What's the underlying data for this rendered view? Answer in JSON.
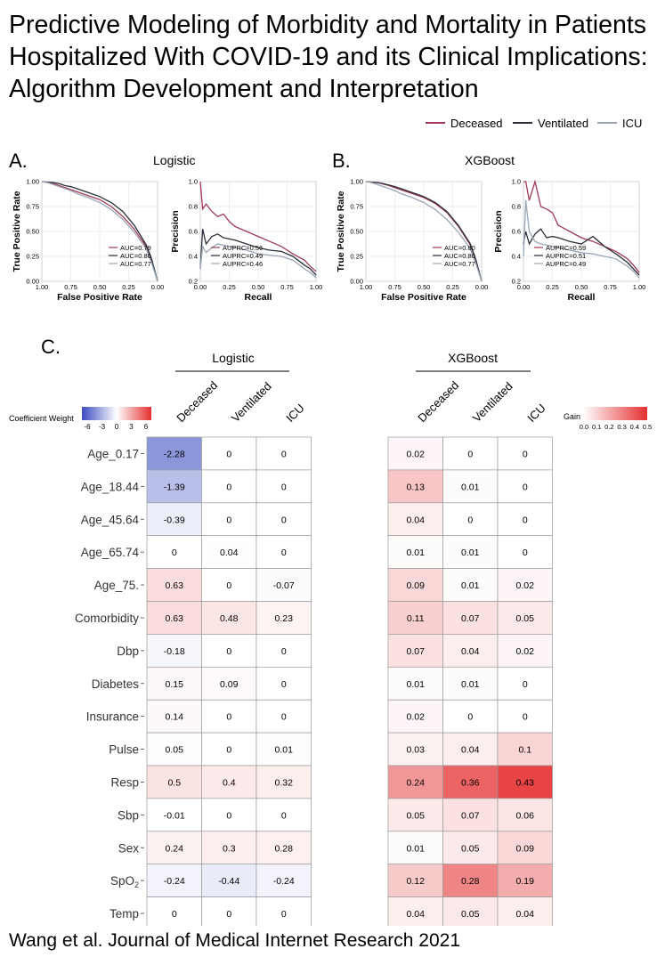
{
  "title": "Predictive Modeling of Morbidity and Mortality in Patients Hospitalized With COVID-19 and its Clinical Implications: Algorithm Development and Interpretation",
  "footer": "Wang et al. Journal of Medical Internet Research 2021",
  "colors": {
    "deceased": "#a23a55",
    "ventilated": "#2b2f3a",
    "icu": "#9aa6b6",
    "neg": "#3b4cc0",
    "pos": "#e53030"
  },
  "legend": {
    "entries": [
      "Deceased",
      "Ventilated",
      "ICU"
    ]
  },
  "panel_a": {
    "letter": "A.",
    "title": "Logistic"
  },
  "panel_b": {
    "letter": "B.",
    "title": "XGBoost"
  },
  "panel_c": {
    "letter": "C.",
    "logistic_title": "Logistic",
    "xgboost_title": "XGBoost",
    "coef_label": "Coefficient Weight",
    "gain_label": "Gain"
  },
  "chart_data": [
    {
      "type": "line",
      "model": "Logistic",
      "curve": "ROC",
      "xlabel": "False Positive Rate",
      "ylabel": "True Positive Rate",
      "xticks": [
        "1.00",
        "0.75",
        "0.50",
        "0.25",
        "0.00"
      ],
      "yticks": [
        "0.00",
        "0.25",
        "0.50",
        "0.75",
        "1.00"
      ],
      "series": [
        {
          "name": "Deceased",
          "auc_label": "AUC=0.79",
          "x": [
            1,
            0.95,
            0.9,
            0.85,
            0.8,
            0.75,
            0.7,
            0.6,
            0.5,
            0.4,
            0.3,
            0.2,
            0.1,
            0.05,
            0
          ],
          "y": [
            1,
            0.99,
            0.98,
            0.96,
            0.94,
            0.92,
            0.9,
            0.86,
            0.82,
            0.75,
            0.65,
            0.52,
            0.35,
            0.2,
            0
          ]
        },
        {
          "name": "Ventilated",
          "auc_label": "AUC=0.80",
          "x": [
            1,
            0.95,
            0.9,
            0.85,
            0.8,
            0.75,
            0.7,
            0.6,
            0.5,
            0.4,
            0.3,
            0.2,
            0.1,
            0.05,
            0
          ],
          "y": [
            1,
            0.995,
            0.99,
            0.98,
            0.96,
            0.95,
            0.93,
            0.89,
            0.85,
            0.79,
            0.7,
            0.56,
            0.37,
            0.22,
            0
          ]
        },
        {
          "name": "ICU",
          "auc_label": "AUC=0.77",
          "x": [
            1,
            0.95,
            0.9,
            0.85,
            0.8,
            0.75,
            0.7,
            0.6,
            0.5,
            0.4,
            0.3,
            0.2,
            0.1,
            0.05,
            0
          ],
          "y": [
            1,
            0.99,
            0.97,
            0.95,
            0.93,
            0.91,
            0.88,
            0.84,
            0.79,
            0.72,
            0.62,
            0.49,
            0.33,
            0.18,
            0
          ]
        }
      ]
    },
    {
      "type": "line",
      "model": "Logistic",
      "curve": "PR",
      "xlabel": "Recall",
      "ylabel": "Precision",
      "xticks": [
        "0.00",
        "0.25",
        "0.50",
        "0.75",
        "1.00"
      ],
      "yticks": [
        "0.2",
        "0.4",
        "0.6",
        "0.8",
        "1.0"
      ],
      "series": [
        {
          "name": "Deceased",
          "auc_label": "AUPRC=0.56",
          "x": [
            0,
            0.02,
            0.05,
            0.1,
            0.15,
            0.2,
            0.25,
            0.3,
            0.4,
            0.5,
            0.6,
            0.7,
            0.8,
            0.9,
            0.95,
            1.0
          ],
          "y": [
            1.0,
            0.78,
            0.82,
            0.76,
            0.72,
            0.74,
            0.68,
            0.64,
            0.6,
            0.56,
            0.52,
            0.48,
            0.42,
            0.37,
            0.32,
            0.28
          ]
        },
        {
          "name": "Ventilated",
          "auc_label": "AUPRC=0.49",
          "x": [
            0,
            0.02,
            0.05,
            0.1,
            0.15,
            0.2,
            0.25,
            0.3,
            0.4,
            0.5,
            0.6,
            0.7,
            0.8,
            0.9,
            0.95,
            1.0
          ],
          "y": [
            0.3,
            0.62,
            0.5,
            0.56,
            0.58,
            0.55,
            0.54,
            0.53,
            0.5,
            0.47,
            0.45,
            0.44,
            0.4,
            0.33,
            0.3,
            0.25
          ]
        },
        {
          "name": "ICU",
          "auc_label": "AUPRC=0.46",
          "x": [
            0,
            0.02,
            0.05,
            0.1,
            0.15,
            0.2,
            0.25,
            0.3,
            0.4,
            0.5,
            0.6,
            0.7,
            0.8,
            0.9,
            0.95,
            1.0
          ],
          "y": [
            0.3,
            0.48,
            0.43,
            0.47,
            0.5,
            0.49,
            0.48,
            0.47,
            0.45,
            0.42,
            0.41,
            0.4,
            0.37,
            0.3,
            0.27,
            0.23
          ]
        }
      ]
    },
    {
      "type": "line",
      "model": "XGBoost",
      "curve": "ROC",
      "xlabel": "False Positive Rate",
      "ylabel": "True Positive Rate",
      "xticks": [
        "1.00",
        "0.75",
        "0.50",
        "0.25",
        "0.00"
      ],
      "yticks": [
        "0.00",
        "0.25",
        "0.50",
        "0.75",
        "1.00"
      ],
      "series": [
        {
          "name": "Deceased",
          "auc_label": "AUC=0.80",
          "x": [
            1,
            0.95,
            0.9,
            0.85,
            0.8,
            0.75,
            0.7,
            0.6,
            0.5,
            0.4,
            0.3,
            0.2,
            0.1,
            0.05,
            0
          ],
          "y": [
            1,
            0.995,
            0.99,
            0.975,
            0.96,
            0.94,
            0.92,
            0.88,
            0.84,
            0.78,
            0.69,
            0.55,
            0.37,
            0.21,
            0
          ]
        },
        {
          "name": "Ventilated",
          "auc_label": "AUC=0.80",
          "x": [
            1,
            0.95,
            0.9,
            0.85,
            0.8,
            0.75,
            0.7,
            0.6,
            0.5,
            0.4,
            0.3,
            0.2,
            0.1,
            0.05,
            0
          ],
          "y": [
            1,
            0.995,
            0.99,
            0.98,
            0.965,
            0.95,
            0.93,
            0.89,
            0.85,
            0.79,
            0.7,
            0.56,
            0.38,
            0.22,
            0
          ]
        },
        {
          "name": "ICU",
          "auc_label": "AUC=0.77",
          "x": [
            1,
            0.95,
            0.9,
            0.85,
            0.8,
            0.75,
            0.7,
            0.6,
            0.5,
            0.4,
            0.3,
            0.2,
            0.1,
            0.05,
            0
          ],
          "y": [
            1,
            0.99,
            0.97,
            0.95,
            0.93,
            0.91,
            0.88,
            0.84,
            0.79,
            0.72,
            0.62,
            0.49,
            0.33,
            0.18,
            0
          ]
        }
      ]
    },
    {
      "type": "line",
      "model": "XGBoost",
      "curve": "PR",
      "xlabel": "Recall",
      "ylabel": "Precision",
      "xticks": [
        "0.00",
        "0.25",
        "0.50",
        "0.75",
        "1.00"
      ],
      "yticks": [
        "0.2",
        "0.4",
        "0.6",
        "0.8",
        "1.0"
      ],
      "series": [
        {
          "name": "Deceased",
          "auc_label": "AUPRC=0.59",
          "x": [
            0,
            0.02,
            0.05,
            0.1,
            0.15,
            0.2,
            0.25,
            0.3,
            0.4,
            0.5,
            0.6,
            0.7,
            0.8,
            0.9,
            0.95,
            1.0
          ],
          "y": [
            1.0,
            1.0,
            0.85,
            1.0,
            0.8,
            0.78,
            0.75,
            0.65,
            0.6,
            0.55,
            0.52,
            0.48,
            0.44,
            0.38,
            0.33,
            0.27
          ]
        },
        {
          "name": "Ventilated",
          "auc_label": "AUPRC=0.51",
          "x": [
            0,
            0.02,
            0.05,
            0.1,
            0.15,
            0.2,
            0.25,
            0.3,
            0.4,
            0.5,
            0.6,
            0.7,
            0.8,
            0.9,
            0.95,
            1.0
          ],
          "y": [
            0.5,
            0.6,
            0.5,
            0.58,
            0.62,
            0.55,
            0.56,
            0.55,
            0.52,
            0.5,
            0.56,
            0.48,
            0.42,
            0.35,
            0.3,
            0.25
          ]
        },
        {
          "name": "ICU",
          "auc_label": "AUPRC=0.49",
          "x": [
            0,
            0.02,
            0.05,
            0.1,
            0.15,
            0.2,
            0.25,
            0.3,
            0.4,
            0.5,
            0.6,
            0.7,
            0.8,
            0.9,
            0.95,
            1.0
          ],
          "y": [
            0.4,
            0.85,
            0.6,
            0.52,
            0.5,
            0.49,
            0.48,
            0.47,
            0.45,
            0.43,
            0.42,
            0.4,
            0.38,
            0.32,
            0.28,
            0.23
          ]
        }
      ]
    },
    {
      "type": "heatmap",
      "model": "Logistic",
      "columns": [
        "Deceased",
        "Ventilated",
        "ICU"
      ],
      "rows": [
        "Age_0.17",
        "Age_18.44",
        "Age_45.64",
        "Age_65.74",
        "Age_75.",
        "Comorbidity",
        "Dbp",
        "Diabetes",
        "Insurance",
        "Pulse",
        "Resp",
        "Sbp",
        "Sex",
        "SpO2",
        "Temp"
      ],
      "values": [
        [
          "-2.28",
          "0",
          "0"
        ],
        [
          "-1.39",
          "0",
          "0"
        ],
        [
          "-0.39",
          "0",
          "0"
        ],
        [
          "0",
          "0.04",
          "0"
        ],
        [
          "0.63",
          "0",
          "-0.07"
        ],
        [
          "0.63",
          "0.48",
          "0.23"
        ],
        [
          "-0.18",
          "0",
          "0"
        ],
        [
          "0.15",
          "0.09",
          "0"
        ],
        [
          "0.14",
          "0",
          "0"
        ],
        [
          "0.05",
          "0",
          "0.01"
        ],
        [
          "0.5",
          "0.4",
          "0.32"
        ],
        [
          "-0.01",
          "0",
          "0"
        ],
        [
          "0.24",
          "0.3",
          "0.28"
        ],
        [
          "-0.24",
          "-0.44",
          "-0.24"
        ],
        [
          "0",
          "0",
          "0"
        ]
      ],
      "scale_ticks": [
        "-6",
        "-3",
        "0",
        "3",
        "6"
      ],
      "range": [
        -6,
        6
      ]
    },
    {
      "type": "heatmap",
      "model": "XGBoost",
      "columns": [
        "Deceased",
        "Ventilated",
        "ICU"
      ],
      "rows": [
        "Age_0.17",
        "Age_18.44",
        "Age_45.64",
        "Age_65.74",
        "Age_75.",
        "Comorbidity",
        "Dbp",
        "Diabetes",
        "Insurance",
        "Pulse",
        "Resp",
        "Sbp",
        "Sex",
        "SpO2",
        "Temp"
      ],
      "values": [
        [
          "0.02",
          "0",
          "0"
        ],
        [
          "0.13",
          "0.01",
          "0"
        ],
        [
          "0.04",
          "0",
          "0"
        ],
        [
          "0.01",
          "0.01",
          "0"
        ],
        [
          "0.09",
          "0.01",
          "0.02"
        ],
        [
          "0.11",
          "0.07",
          "0.05"
        ],
        [
          "0.07",
          "0.04",
          "0.02"
        ],
        [
          "0.01",
          "0.01",
          "0"
        ],
        [
          "0.02",
          "0",
          "0"
        ],
        [
          "0.03",
          "0.04",
          "0.1"
        ],
        [
          "0.24",
          "0.36",
          "0.43"
        ],
        [
          "0.05",
          "0.07",
          "0.06"
        ],
        [
          "0.01",
          "0.05",
          "0.09"
        ],
        [
          "0.12",
          "0.28",
          "0.19"
        ],
        [
          "0.04",
          "0.05",
          "0.04"
        ]
      ],
      "scale_ticks": [
        "0.0",
        "0.1",
        "0.2",
        "0.3",
        "0.4",
        "0.5"
      ],
      "range": [
        0,
        0.5
      ]
    }
  ]
}
